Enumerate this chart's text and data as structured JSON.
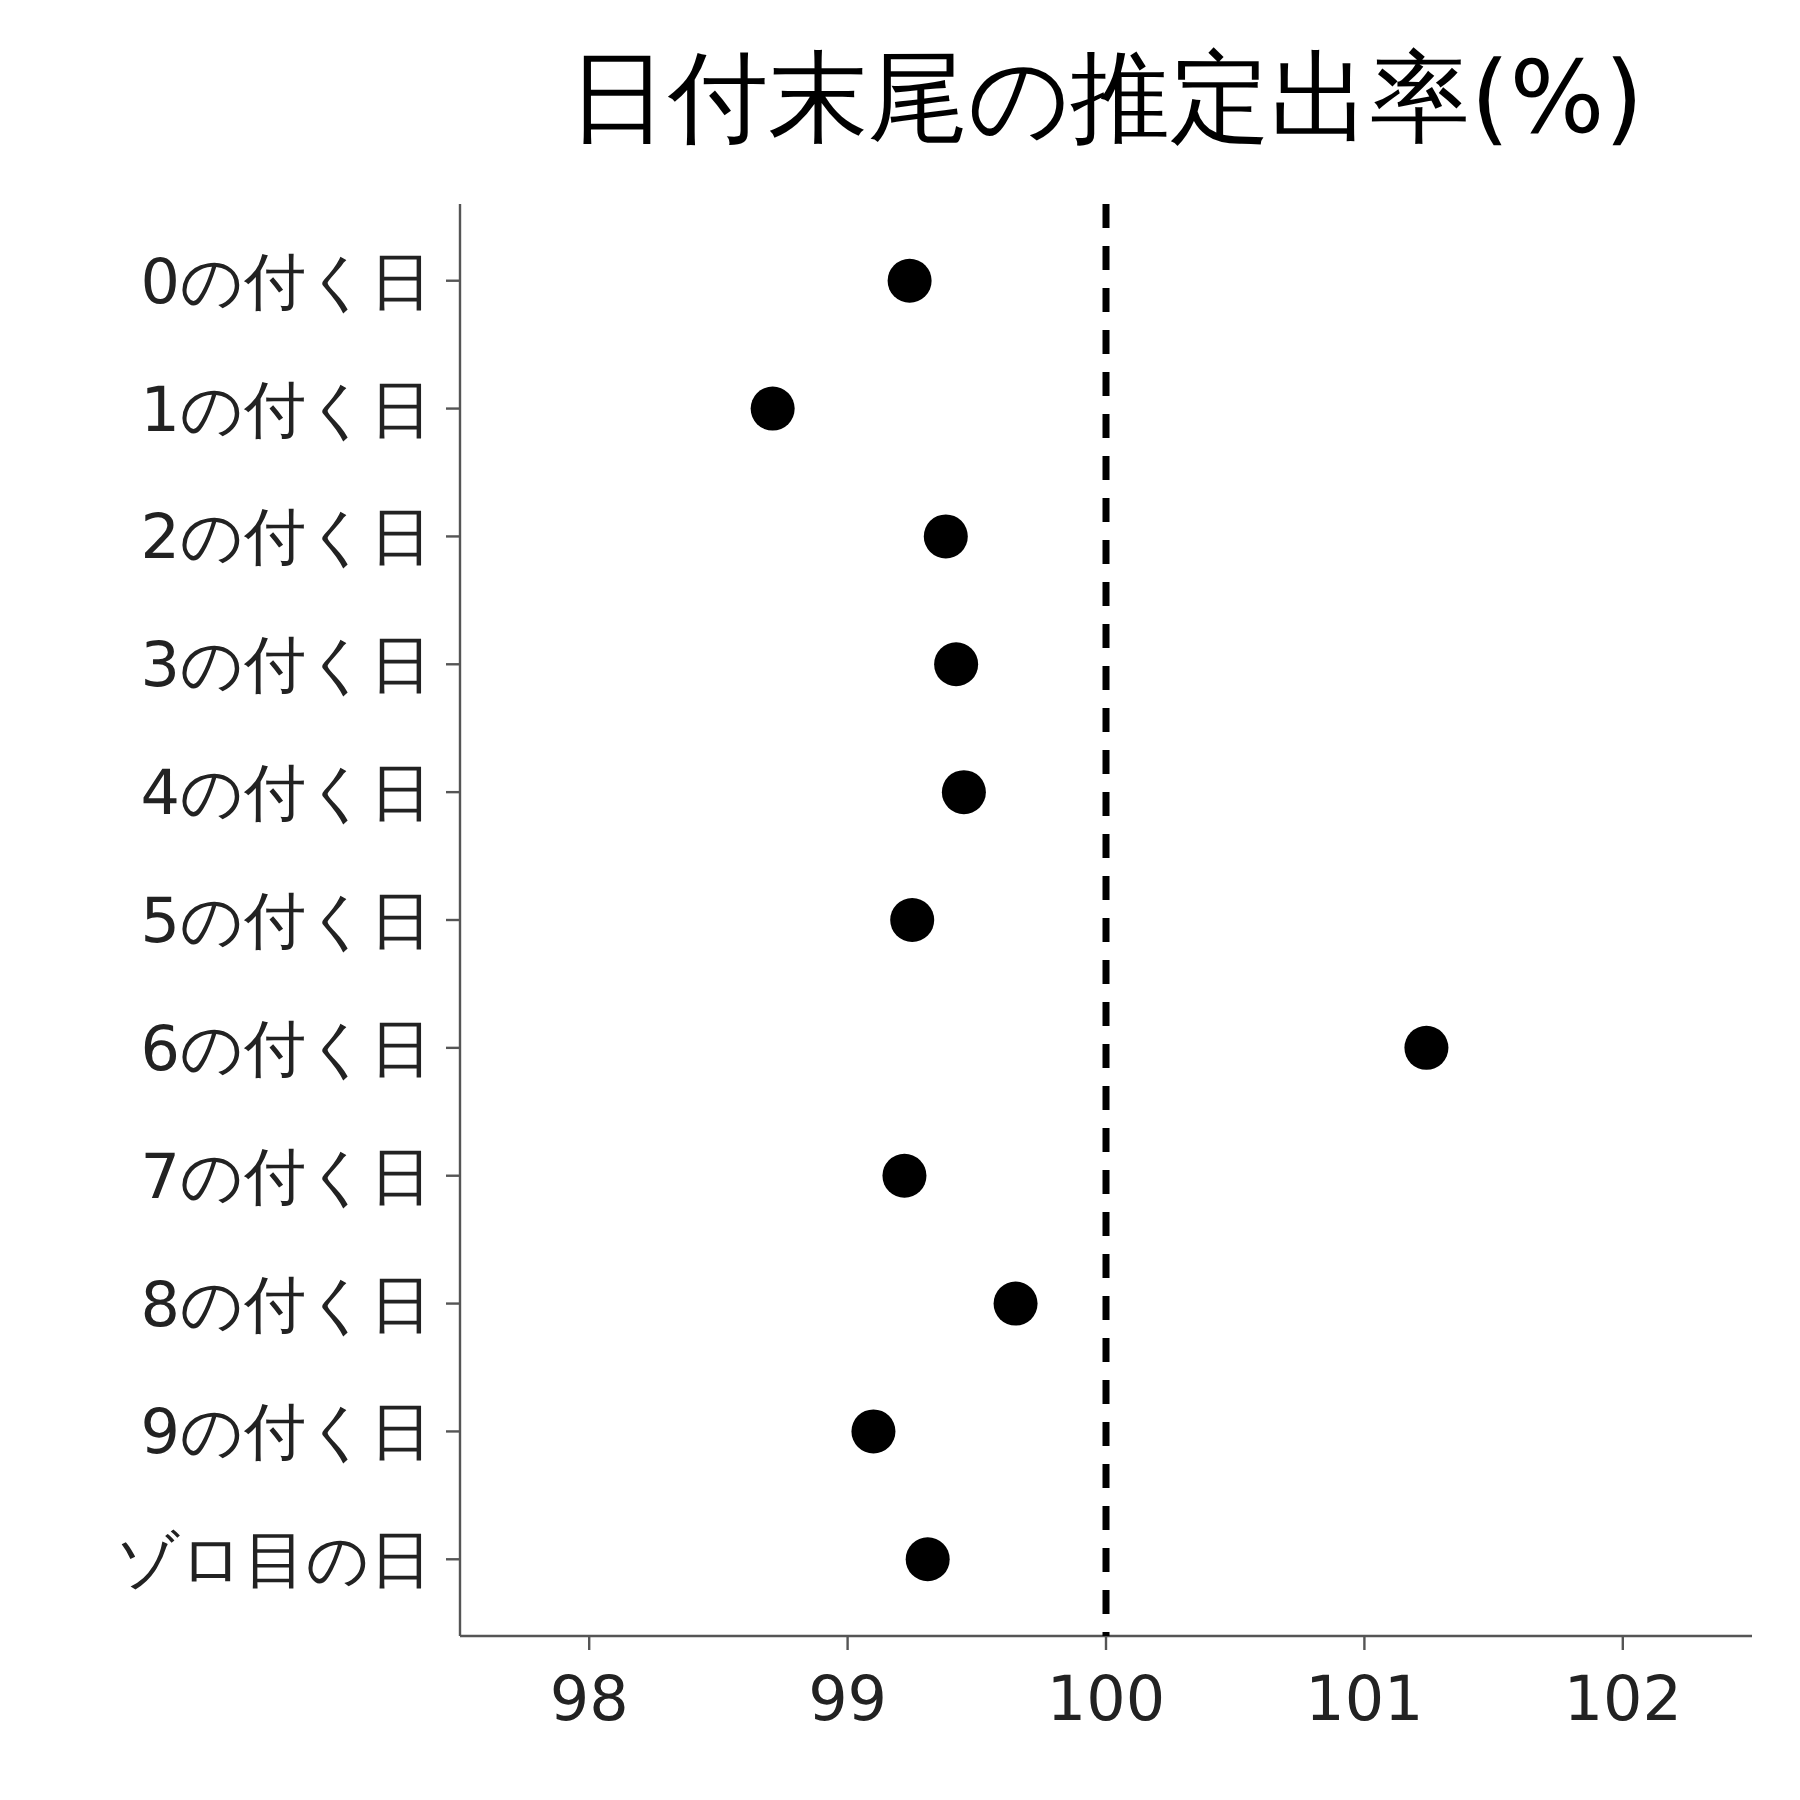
{
  "chart_data": {
    "type": "scatter",
    "title": "日付末尾の推定出率(%)",
    "orientation": "horizontal",
    "categories": [
      "0の付く日",
      "1の付く日",
      "2の付く日",
      "3の付く日",
      "4の付く日",
      "5の付く日",
      "6の付く日",
      "7の付く日",
      "8の付く日",
      "9の付く日",
      "ゾロ目の日"
    ],
    "series": [
      {
        "color": "#000000",
        "values": [
          99.24,
          98.71,
          99.38,
          99.42,
          99.45,
          99.25,
          101.24,
          99.22,
          99.65,
          99.1,
          99.31
        ]
      }
    ],
    "xlim": [
      97.5,
      102.5
    ],
    "xticks": [
      98,
      99,
      100,
      101,
      102
    ],
    "ref_lines": [
      {
        "axis": "x",
        "value": 100,
        "color": "#000000",
        "line_style": "dashed"
      }
    ],
    "marker": "circle",
    "grid": false
  }
}
